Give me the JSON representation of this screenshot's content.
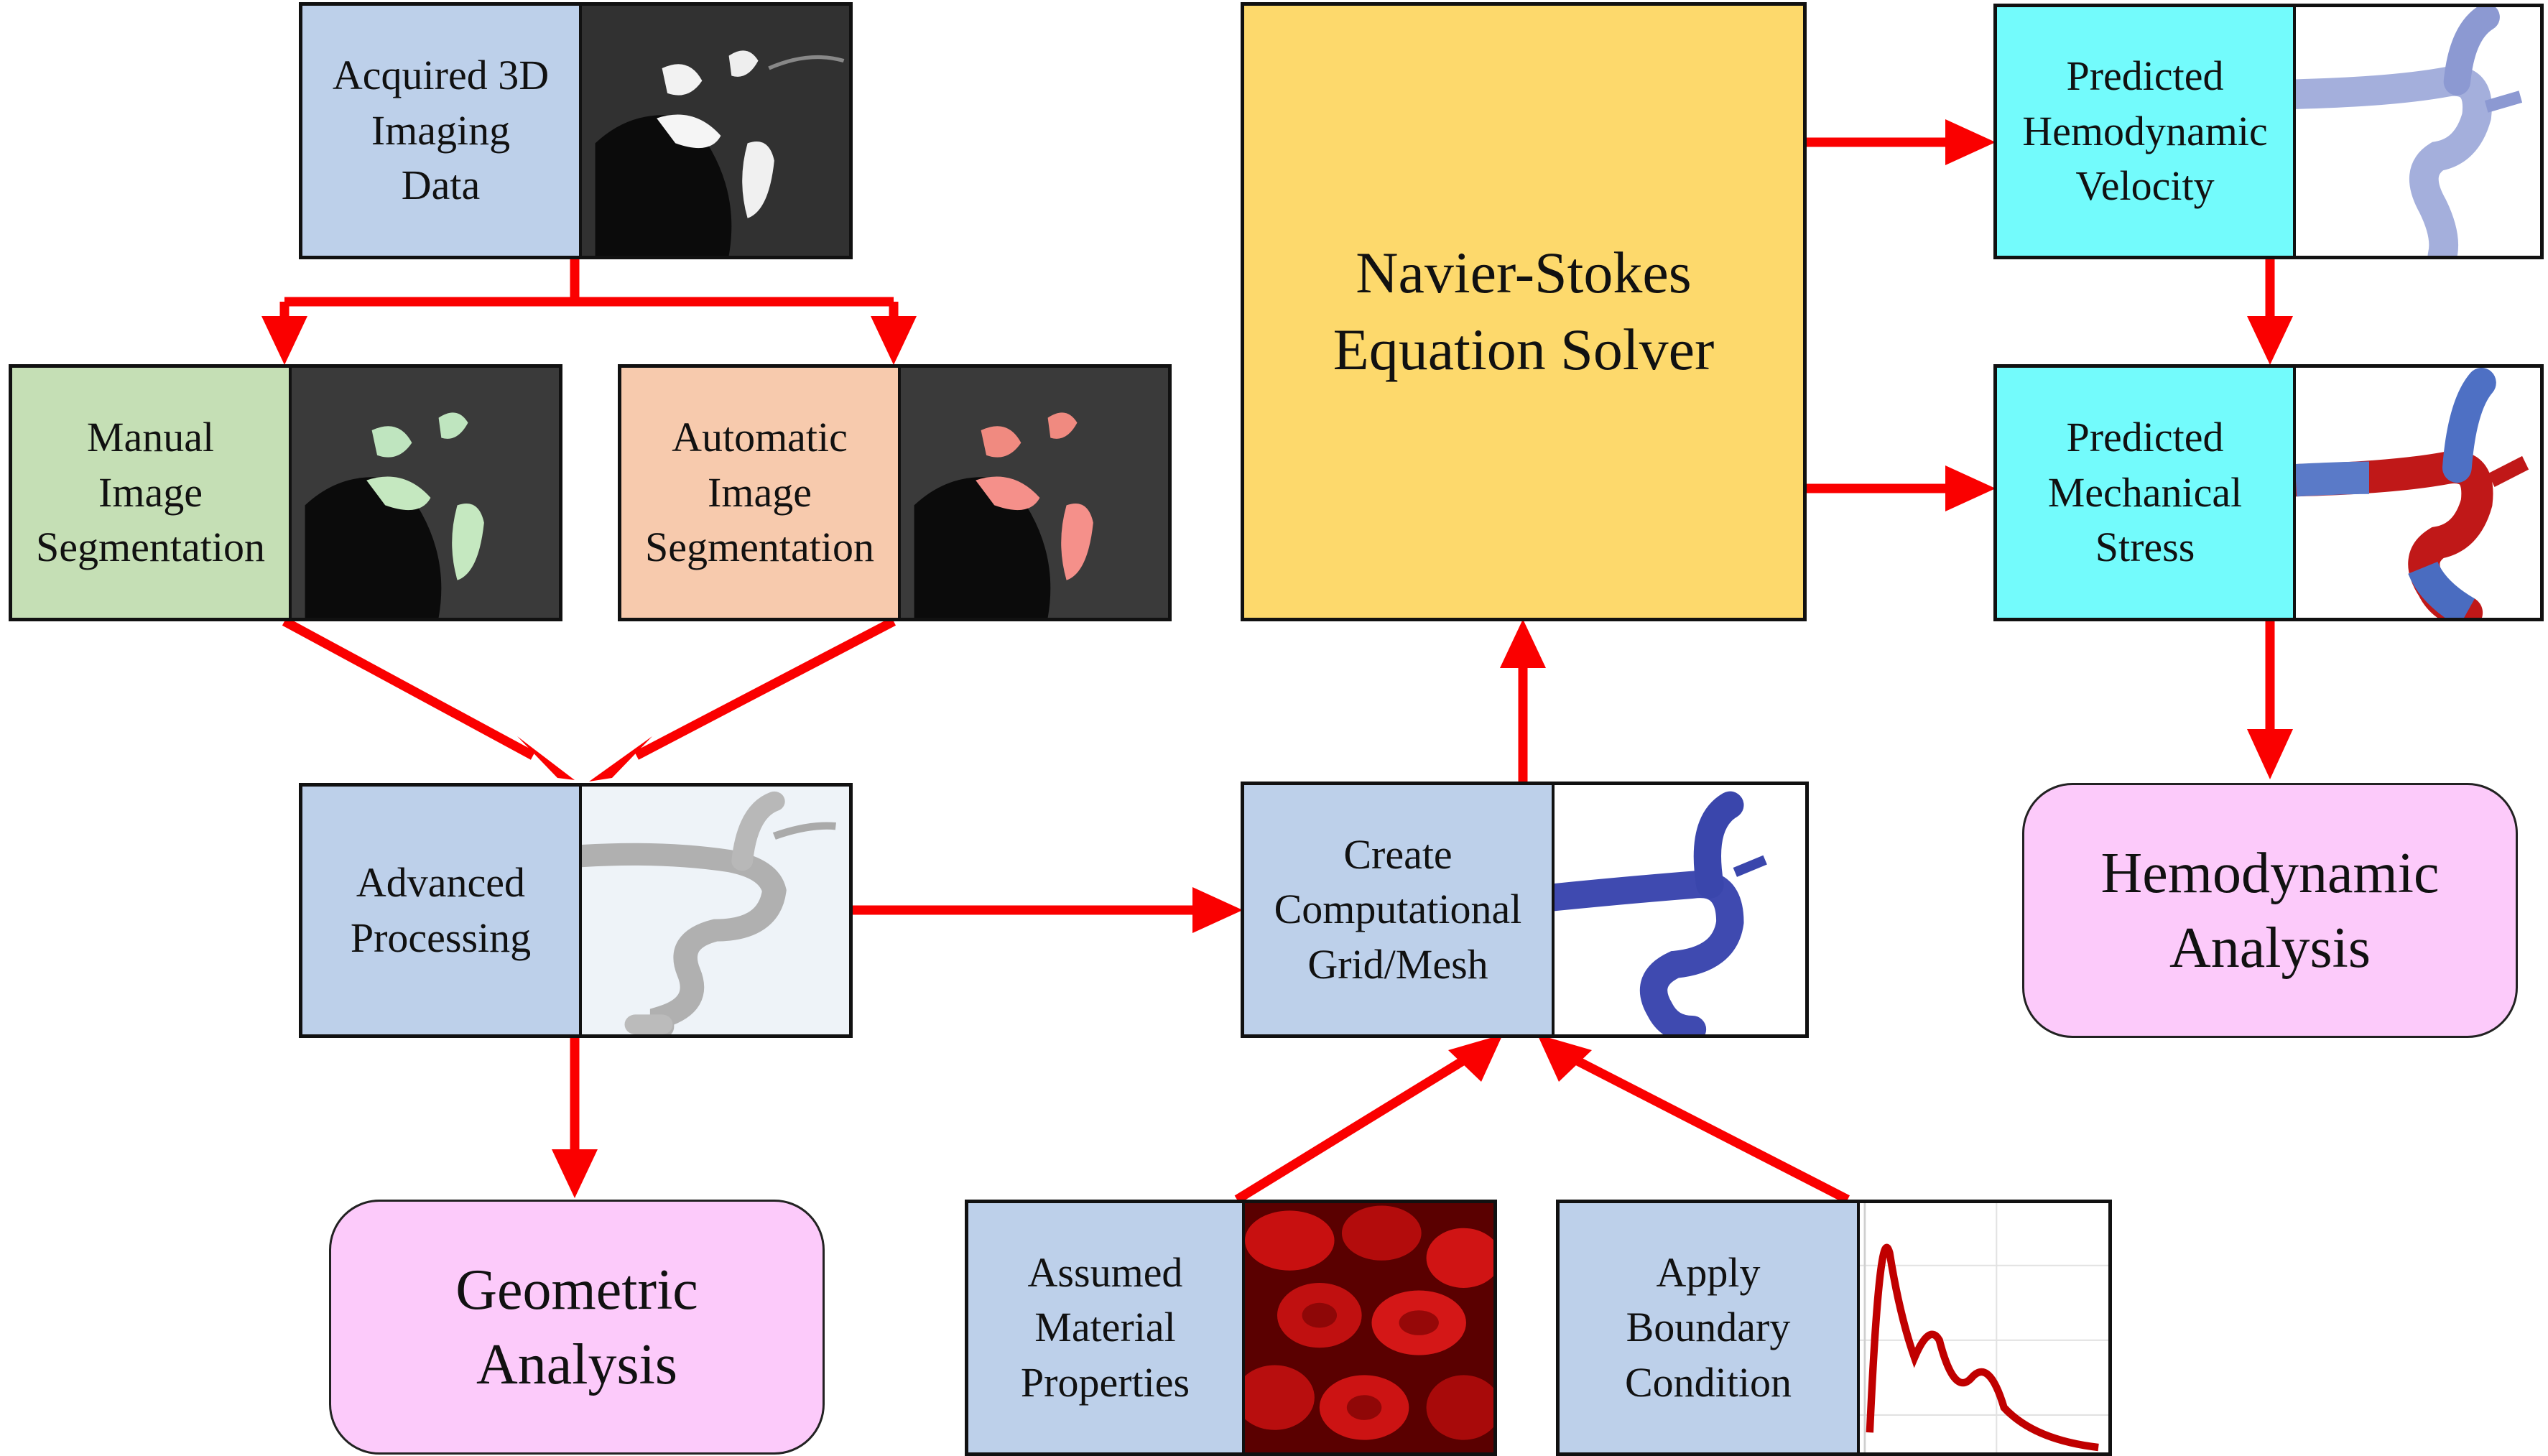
{
  "colors": {
    "arrow": "#fa0000",
    "input_box": "#bdd0ea",
    "manual_box": "#c5dfb5",
    "automatic_box": "#f7caad",
    "output_box": "#73fbfc",
    "solver_box": "#fdd96c",
    "analysis_box": "#fccafa"
  },
  "nodes": {
    "acquired": {
      "label": "Acquired 3D\nImaging\nData",
      "image": "mri-slice"
    },
    "manual": {
      "label": "Manual\nImage\nSegmentation",
      "image": "mri-slice-green-overlay"
    },
    "automatic": {
      "label": "Automatic\nImage\nSegmentation",
      "image": "mri-slice-red-overlay"
    },
    "advanced": {
      "label": "Advanced\nProcessing",
      "image": "vessel-surface-model"
    },
    "geometric": {
      "label": "Geometric\nAnalysis"
    },
    "mesh": {
      "label": "Create\nComputational\nGrid/Mesh",
      "image": "vessel-mesh-model"
    },
    "material": {
      "label": "Assumed\nMaterial\nProperties",
      "image": "red-blood-cells"
    },
    "boundary": {
      "label": "Apply\nBoundary\nCondition",
      "image": "flow-waveform-plot"
    },
    "solver": {
      "label": "Navier-Stokes\nEquation Solver"
    },
    "velocity": {
      "label": "Predicted\nHemodynamic\nVelocity",
      "image": "velocity-render"
    },
    "stress": {
      "label": "Predicted\nMechanical\nStress",
      "image": "stress-render"
    },
    "hemodynamic": {
      "label": "Hemodynamic\nAnalysis"
    }
  }
}
